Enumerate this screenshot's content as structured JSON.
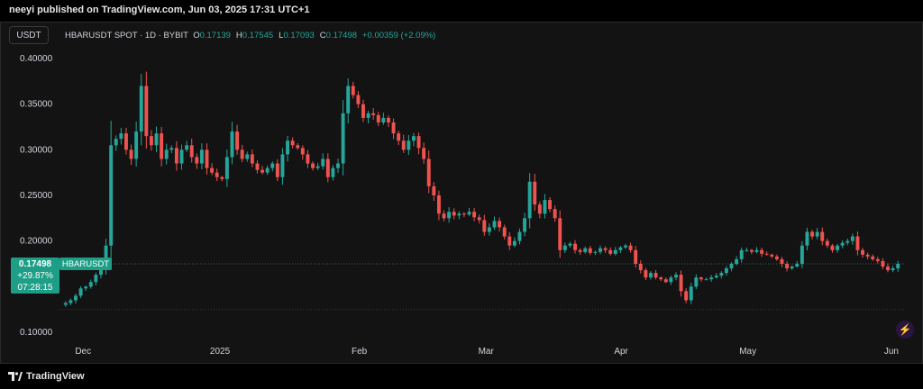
{
  "header": {
    "published_line": "neeyi published on TradingView.com, Jun 03, 2025 17:31 UTC+1"
  },
  "toolbar": {
    "currency_button": "USDT"
  },
  "legend": {
    "symbol_line": "HBARUSDT SPOT · 1D · BYBIT",
    "open_label": "O",
    "open_value": "0.17139",
    "high_label": "H",
    "high_value": "0.17545",
    "low_label": "L",
    "low_value": "0.17093",
    "close_label": "C",
    "close_value": "0.17498",
    "change": "+0.00359 (+2.09%)"
  },
  "price_badge": {
    "price": "0.17498",
    "symbol": "HBARUSDT",
    "change_pct": "+29.87%",
    "countdown": "07:28:15"
  },
  "footer": {
    "brand": "TradingView"
  },
  "colors": {
    "up": "#26a69a",
    "down": "#ef5350",
    "background": "#131313",
    "grid": "#1f1f1f",
    "axis_text": "#d1d4dc",
    "badge": "#1e9e86",
    "accent_icon": "#b36bff"
  },
  "icons": [
    "lightning-icon",
    "tradingview-logo-icon"
  ],
  "chart_data": {
    "type": "candlestick",
    "title": "HBARUSDT SPOT · 1D · BYBIT",
    "y_ticks": [
      "0.40000",
      "0.35000",
      "0.30000",
      "0.25000",
      "0.20000",
      "0.10000"
    ],
    "y_tick_values": [
      0.4,
      0.35,
      0.3,
      0.25,
      0.2,
      0.1
    ],
    "x_ticks": [
      "Dec",
      "2025",
      "Feb",
      "Mar",
      "Apr",
      "May",
      "Jun"
    ],
    "ylim": [
      0.095,
      0.405
    ],
    "grid": false,
    "last_price": 0.17498,
    "reference_line_low": 0.125,
    "period_change_pct": 29.87,
    "closes": [
      0.132,
      0.135,
      0.14,
      0.148,
      0.15,
      0.155,
      0.163,
      0.17,
      0.195,
      0.305,
      0.312,
      0.318,
      0.3,
      0.29,
      0.32,
      0.37,
      0.315,
      0.305,
      0.318,
      0.29,
      0.3,
      0.302,
      0.285,
      0.3,
      0.305,
      0.292,
      0.285,
      0.3,
      0.28,
      0.275,
      0.27,
      0.268,
      0.292,
      0.32,
      0.3,
      0.29,
      0.295,
      0.285,
      0.278,
      0.275,
      0.28,
      0.285,
      0.27,
      0.295,
      0.31,
      0.305,
      0.302,
      0.295,
      0.285,
      0.28,
      0.282,
      0.29,
      0.27,
      0.28,
      0.285,
      0.34,
      0.37,
      0.36,
      0.35,
      0.335,
      0.34,
      0.338,
      0.33,
      0.335,
      0.33,
      0.318,
      0.31,
      0.3,
      0.31,
      0.315,
      0.302,
      0.29,
      0.26,
      0.25,
      0.23,
      0.225,
      0.232,
      0.228,
      0.23,
      0.229,
      0.232,
      0.226,
      0.223,
      0.21,
      0.215,
      0.222,
      0.215,
      0.205,
      0.195,
      0.2,
      0.21,
      0.225,
      0.265,
      0.24,
      0.23,
      0.245,
      0.235,
      0.225,
      0.19,
      0.195,
      0.197,
      0.19,
      0.188,
      0.192,
      0.187,
      0.188,
      0.192,
      0.19,
      0.186,
      0.19,
      0.193,
      0.195,
      0.19,
      0.175,
      0.168,
      0.16,
      0.165,
      0.16,
      0.158,
      0.155,
      0.16,
      0.163,
      0.145,
      0.135,
      0.15,
      0.16,
      0.158,
      0.158,
      0.16,
      0.162,
      0.165,
      0.17,
      0.175,
      0.18,
      0.19,
      0.19,
      0.188,
      0.19,
      0.186,
      0.185,
      0.183,
      0.18,
      0.175,
      0.17,
      0.172,
      0.175,
      0.195,
      0.21,
      0.205,
      0.21,
      0.2,
      0.195,
      0.19,
      0.195,
      0.198,
      0.2,
      0.205,
      0.19,
      0.185,
      0.183,
      0.18,
      0.178,
      0.172,
      0.168,
      0.17,
      0.175
    ]
  }
}
